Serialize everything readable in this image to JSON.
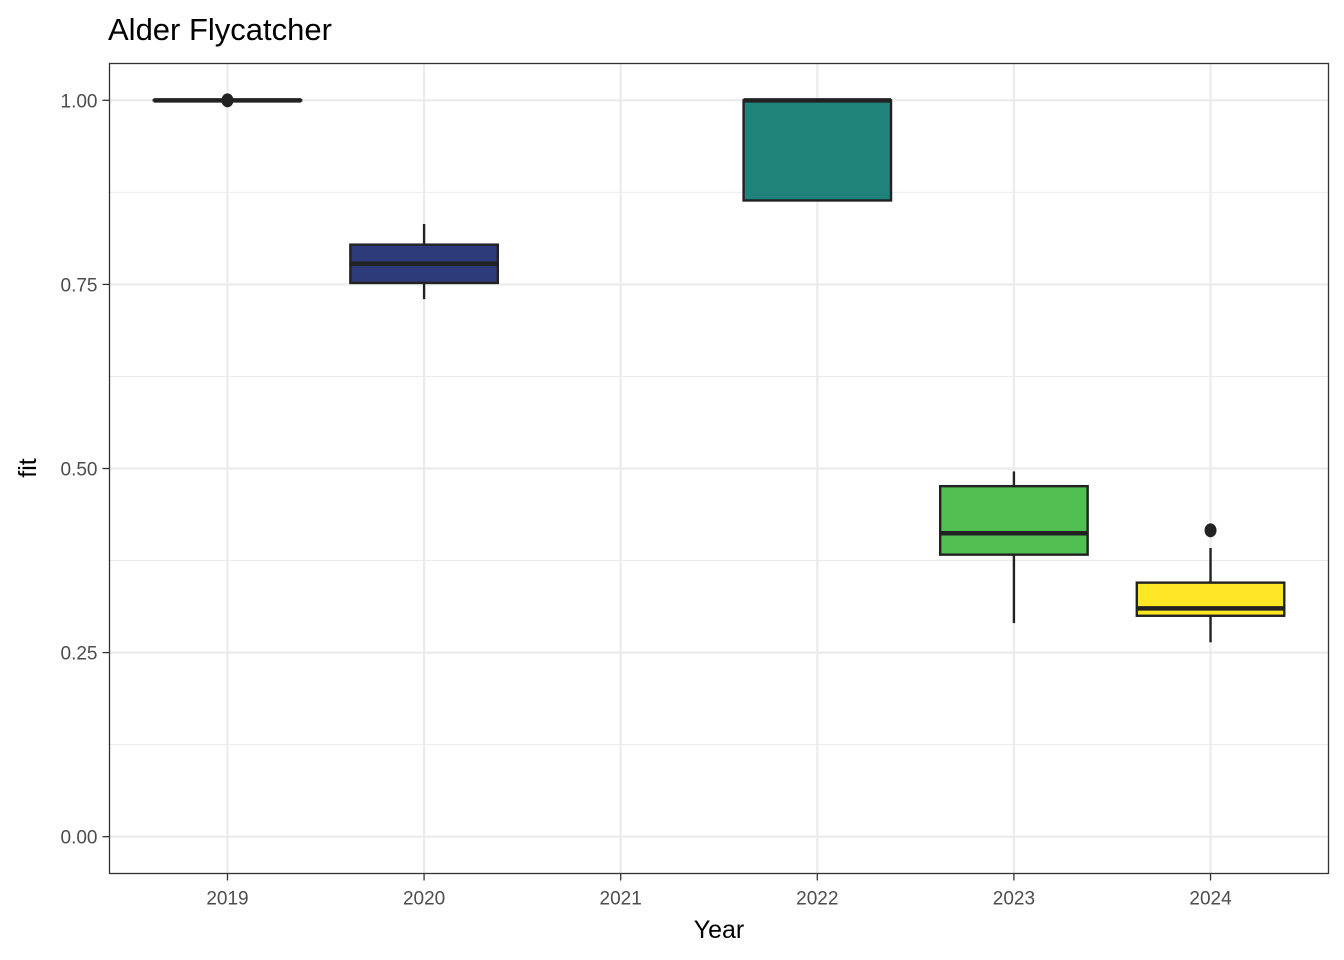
{
  "chart_data": {
    "type": "boxplot",
    "title": "Alder Flycatcher",
    "xlabel": "Year",
    "ylabel": "fit",
    "ylim": [
      -0.05,
      1.05
    ],
    "grid": true,
    "legend": "none",
    "categories": [
      "2019",
      "2020",
      "2021",
      "2022",
      "2023",
      "2024"
    ],
    "y_ticks": [
      {
        "value": 0.0,
        "label": "0.00"
      },
      {
        "value": 0.25,
        "label": "0.25"
      },
      {
        "value": 0.5,
        "label": "0.50"
      },
      {
        "value": 0.75,
        "label": "0.75"
      },
      {
        "value": 1.0,
        "label": "1.00"
      }
    ],
    "boxes": [
      {
        "category": "2019",
        "min": 1.0,
        "q1": 1.0,
        "median": 1.0,
        "q3": 1.0,
        "max": 1.0,
        "outliers": [
          1.0
        ],
        "color": "#440154"
      },
      {
        "category": "2020",
        "min": 0.73,
        "q1": 0.752,
        "median": 0.778,
        "q3": 0.804,
        "max": 0.832,
        "outliers": [],
        "color": "#2d3a7b"
      },
      {
        "category": "2022",
        "min": 0.864,
        "q1": 0.864,
        "median": 1.0,
        "q3": 1.0,
        "max": 1.0,
        "outliers": [],
        "color": "#1f827b"
      },
      {
        "category": "2023",
        "min": 0.29,
        "q1": 0.383,
        "median": 0.412,
        "q3": 0.476,
        "max": 0.496,
        "outliers": [],
        "color": "#51bf52"
      },
      {
        "category": "2024",
        "min": 0.264,
        "q1": 0.3,
        "median": 0.31,
        "q3": 0.345,
        "max": 0.392,
        "outliers": [
          0.416
        ],
        "color": "#fde725"
      }
    ]
  }
}
